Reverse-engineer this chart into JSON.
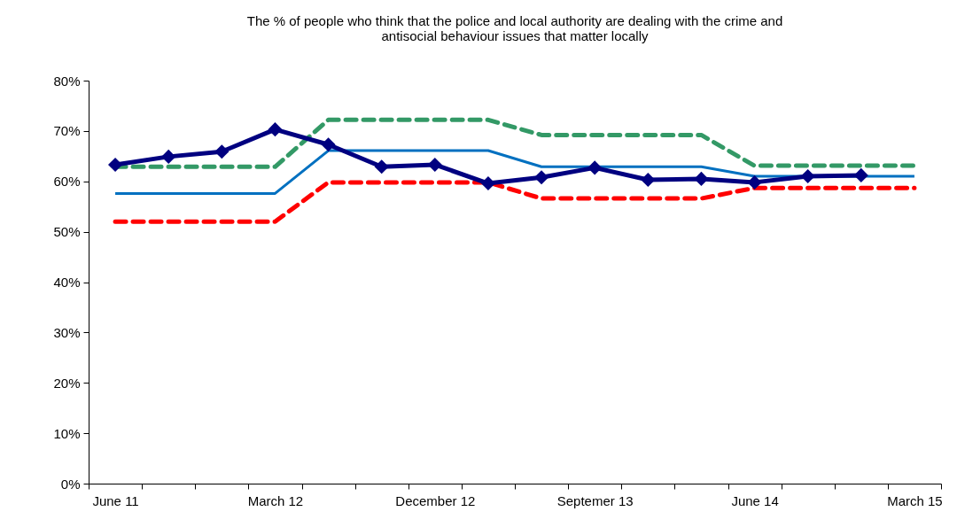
{
  "chart_data": {
    "type": "line",
    "title": "The % of people who think that the police and local authority are dealing with the crime and\nantisocial behaviour issues that matter locally",
    "categories": [
      "June 11",
      null,
      null,
      "March 12",
      null,
      null,
      "December 12",
      null,
      null,
      "Septemer 13",
      null,
      null,
      "June 14",
      null,
      null,
      "March 15"
    ],
    "series": [
      {
        "color": "#339966",
        "line_style": "dashed",
        "marker": "none",
        "values": [
          62.9,
          62.9,
          62.9,
          62.9,
          72.2,
          72.2,
          72.2,
          72.2,
          69.2,
          69.2,
          69.2,
          69.2,
          63.1,
          63.1,
          63.1,
          63.1
        ]
      },
      {
        "color": "#ff0000",
        "line_style": "dashed",
        "marker": "none",
        "values": [
          52.0,
          52.0,
          52.0,
          52.0,
          59.8,
          59.8,
          59.8,
          59.8,
          56.6,
          56.6,
          56.6,
          56.6,
          58.7,
          58.7,
          58.7,
          58.7
        ]
      },
      {
        "color": "#0070c0",
        "line_style": "solid",
        "marker": "none",
        "values": [
          57.6,
          57.6,
          57.6,
          57.6,
          66.1,
          66.1,
          66.1,
          66.1,
          62.9,
          62.9,
          62.9,
          62.9,
          61.0,
          61.0,
          61.0,
          61.0
        ]
      },
      {
        "color": "#000080",
        "line_style": "solid",
        "marker": "diamond",
        "values": [
          63.3,
          64.9,
          65.9,
          70.3,
          67.3,
          62.9,
          63.3,
          59.6,
          60.8,
          62.7,
          60.3,
          60.5,
          59.8,
          61.0,
          61.2,
          null
        ]
      }
    ],
    "ylim": [
      0,
      80
    ],
    "yticks": [
      {
        "value": 0,
        "label": "0%"
      },
      {
        "value": 10,
        "label": "10%"
      },
      {
        "value": 20,
        "label": "20%"
      },
      {
        "value": 30,
        "label": "30%"
      },
      {
        "value": 40,
        "label": "40%"
      },
      {
        "value": 50,
        "label": "50%"
      },
      {
        "value": 60,
        "label": "60%"
      },
      {
        "value": 70,
        "label": "70%"
      },
      {
        "value": 80,
        "label": "80%"
      }
    ],
    "tick_labels": "xy"
  }
}
